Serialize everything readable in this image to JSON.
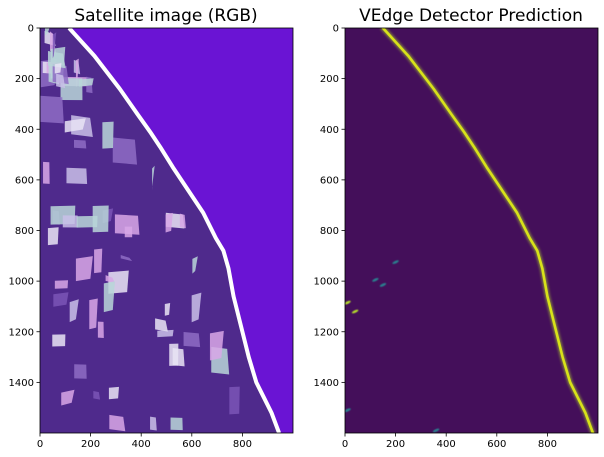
{
  "chart_data": [
    {
      "type": "image",
      "title": "Satellite image (RGB)",
      "xlim": [
        0,
        1000
      ],
      "ylim": [
        1600,
        0
      ],
      "xticks": [
        0,
        200,
        400,
        600,
        800
      ],
      "yticks": [
        0,
        200,
        400,
        600,
        800,
        1000,
        1200,
        1400
      ],
      "colors": {
        "sea": "#6a14d4",
        "sea_deep": "#5a0cc6",
        "land": "#4f2a8c",
        "surf": "#ffffff",
        "field_light": "#e9e4f4",
        "field_pale": "#c9bfe8",
        "field_pink": "#d8a7e6",
        "field_teal": "#b9d6d8"
      }
    },
    {
      "type": "heatmap",
      "title": "VEdge Detector Prediction",
      "xlim": [
        0,
        1000
      ],
      "ylim": [
        1600,
        0
      ],
      "xticks": [
        0,
        200,
        400,
        600,
        800
      ],
      "yticks": [
        0,
        200,
        400,
        600,
        800,
        1000,
        1200,
        1400
      ],
      "colors": {
        "background": "#440f5a",
        "edge": "#b5de2b",
        "edge_core": "#d8e219",
        "noise": "#2a7f8e"
      },
      "edge_line": {
        "x": [
          150,
          250,
          350,
          420,
          470,
          510,
          560,
          620,
          680,
          730,
          760,
          780,
          800,
          830,
          860,
          890,
          920,
          950,
          980
        ],
        "y": [
          0,
          110,
          240,
          340,
          410,
          470,
          550,
          640,
          730,
          830,
          880,
          950,
          1060,
          1180,
          1300,
          1400,
          1460,
          1520,
          1600
        ]
      },
      "noise_points": {
        "x": [
          10,
          120,
          150,
          200,
          40,
          10,
          360
        ],
        "y": [
          1085,
          995,
          1015,
          925,
          1120,
          1510,
          1590
        ]
      }
    }
  ]
}
